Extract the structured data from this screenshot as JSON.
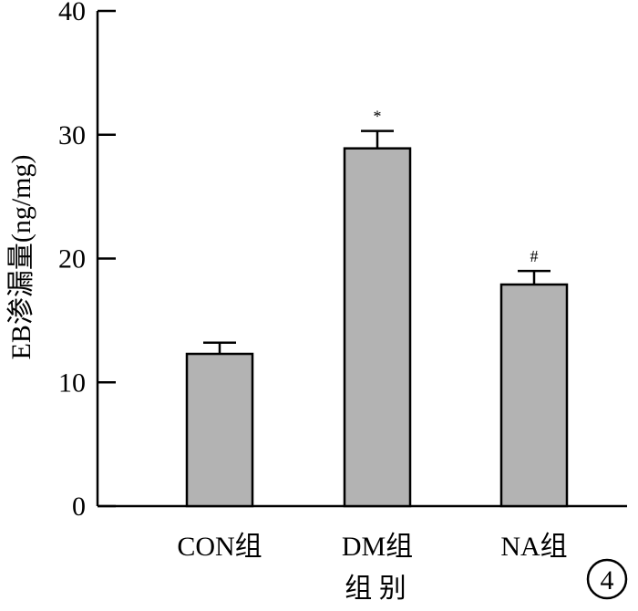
{
  "chart_data": {
    "type": "bar",
    "title": "",
    "xlabel": "组 别",
    "ylabel": "EB渗漏量(ng/mg)",
    "ylim": [
      0,
      40
    ],
    "yticks": [
      0,
      10,
      20,
      30,
      40
    ],
    "categories": [
      "CON组",
      "DM组",
      "NA组"
    ],
    "series": [
      {
        "values": [
          12.3,
          28.9,
          17.9
        ],
        "errors": [
          0.9,
          1.4,
          1.1
        ]
      }
    ],
    "annotations": [
      "",
      "*",
      "#"
    ],
    "grid": false,
    "legend": "none",
    "bar_color": "#b3b3b3",
    "edge_color": "#000000"
  },
  "panel_label": "4"
}
